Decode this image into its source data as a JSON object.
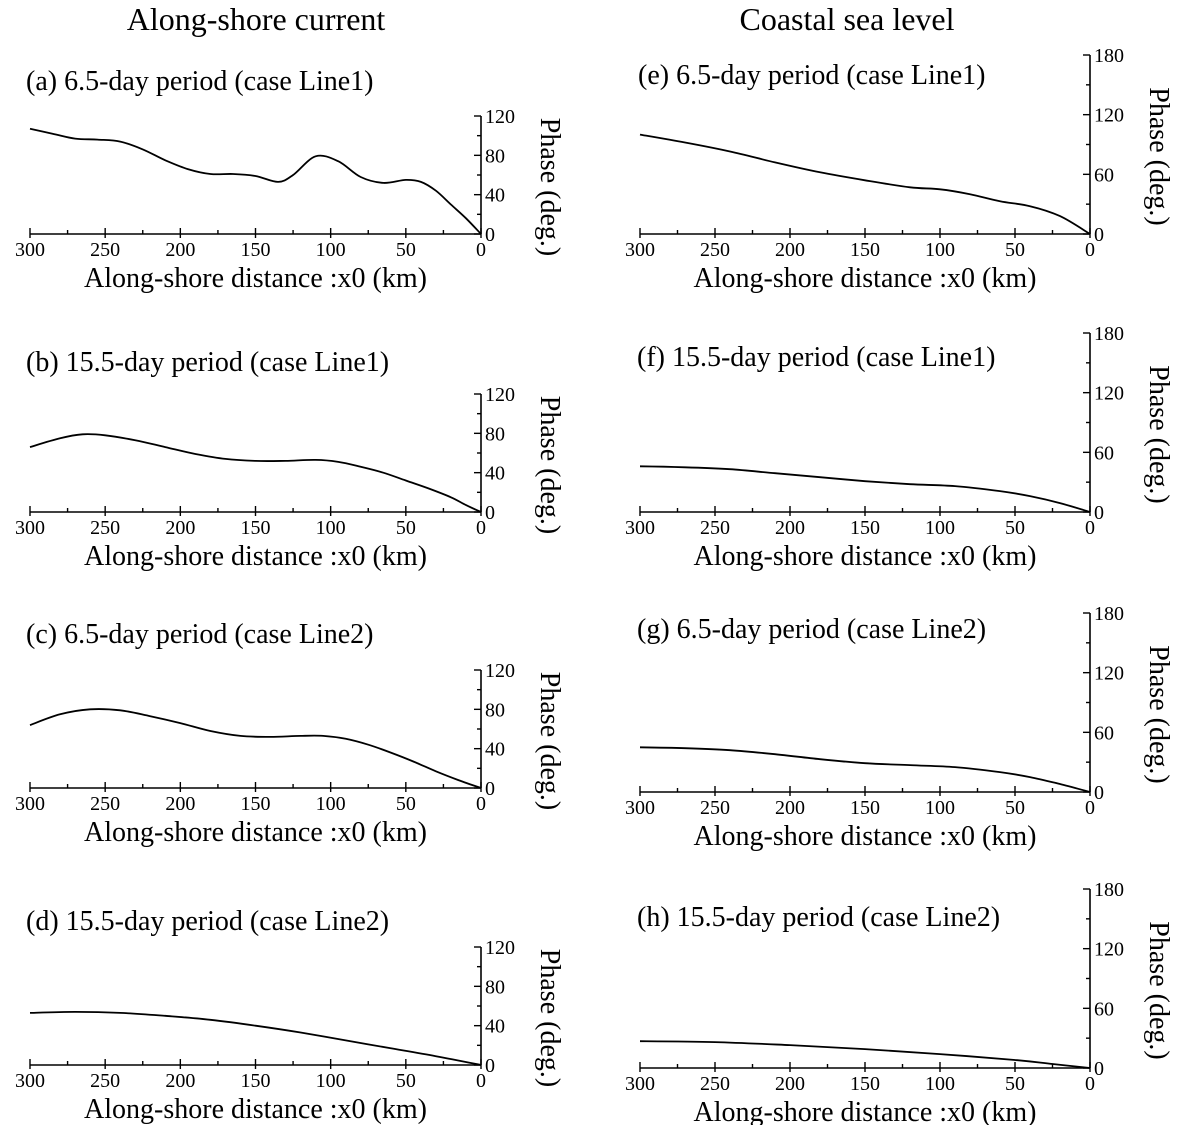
{
  "column_titles": [
    "Along-shore current",
    "Coastal sea level"
  ],
  "chart_data": [
    {
      "type": "line",
      "panel": "a",
      "title": "(a) 6.5-day period  (case Line1)",
      "xlabel": "Along-shore  distance :x0 (km)",
      "ylabel": "Phase (deg.)",
      "xlim": [
        300,
        0
      ],
      "ylim": [
        0,
        120
      ],
      "xticks": [
        "300",
        "250",
        "200",
        "150",
        "100",
        "50",
        "0"
      ],
      "yticks": [
        "0",
        "40",
        "80",
        "120"
      ],
      "x": [
        300,
        285,
        270,
        255,
        240,
        225,
        210,
        195,
        180,
        165,
        150,
        135,
        125,
        110,
        95,
        80,
        65,
        50,
        40,
        30,
        20,
        10,
        0
      ],
      "y": [
        107,
        102,
        97,
        96,
        94,
        86,
        75,
        66,
        61,
        61,
        59,
        53,
        60,
        79,
        74,
        58,
        52,
        55,
        53,
        44,
        30,
        16,
        0
      ]
    },
    {
      "type": "line",
      "panel": "b",
      "title": "(b) 15.5-day period  (case Line1)",
      "xlabel": "Along-shore  distance :x0 (km)",
      "ylabel": "Phase (deg.)",
      "xlim": [
        300,
        0
      ],
      "ylim": [
        0,
        120
      ],
      "xticks": [
        "300",
        "250",
        "200",
        "150",
        "100",
        "50",
        "0"
      ],
      "yticks": [
        "0",
        "40",
        "80",
        "120"
      ],
      "x": [
        300,
        280,
        265,
        250,
        230,
        210,
        190,
        170,
        150,
        130,
        110,
        95,
        80,
        65,
        50,
        35,
        20,
        10,
        0
      ],
      "y": [
        66,
        75,
        79,
        78,
        73,
        66,
        59,
        54,
        52,
        52,
        53,
        51,
        46,
        40,
        32,
        24,
        15,
        7,
        0
      ]
    },
    {
      "type": "line",
      "panel": "c",
      "title": "(c) 6.5-day period  (case Line2)",
      "xlabel": "Along-shore  distance :x0 (km)",
      "ylabel": "Phase (deg.)",
      "xlim": [
        300,
        0
      ],
      "ylim": [
        0,
        120
      ],
      "xticks": [
        "300",
        "250",
        "200",
        "150",
        "100",
        "50",
        "0"
      ],
      "yticks": [
        "0",
        "40",
        "80",
        "120"
      ],
      "x": [
        300,
        280,
        260,
        240,
        220,
        200,
        180,
        160,
        140,
        120,
        105,
        90,
        75,
        60,
        45,
        30,
        15,
        0
      ],
      "y": [
        64,
        75,
        80,
        79,
        73,
        66,
        58,
        53,
        52,
        53,
        53,
        50,
        44,
        36,
        27,
        17,
        8,
        0
      ]
    },
    {
      "type": "line",
      "panel": "d",
      "title": "(d) 15.5-day period  (case Line2)",
      "xlabel": "Along-shore  distance :x0 (km)",
      "ylabel": "Phase (deg.)",
      "xlim": [
        300,
        0
      ],
      "ylim": [
        0,
        120
      ],
      "xticks": [
        "300",
        "250",
        "200",
        "150",
        "100",
        "50",
        "0"
      ],
      "yticks": [
        "0",
        "40",
        "80",
        "120"
      ],
      "x": [
        300,
        270,
        240,
        210,
        180,
        150,
        120,
        90,
        60,
        30,
        0
      ],
      "y": [
        53,
        54,
        53,
        50,
        46,
        40,
        33,
        25,
        17,
        9,
        0
      ]
    },
    {
      "type": "line",
      "panel": "e",
      "title": "(e) 6.5-day period  (case Line1)",
      "xlabel": "Along-shore  distance :x0 (km)",
      "ylabel": "Phase (deg.)",
      "xlim": [
        300,
        0
      ],
      "ylim": [
        0,
        180
      ],
      "xticks": [
        "300",
        "250",
        "200",
        "150",
        "100",
        "50",
        "0"
      ],
      "yticks": [
        "0",
        "60",
        "120",
        "180"
      ],
      "x": [
        300,
        270,
        240,
        210,
        180,
        150,
        120,
        100,
        80,
        60,
        40,
        20,
        0
      ],
      "y": [
        100,
        92,
        83,
        72,
        62,
        54,
        47,
        45,
        40,
        33,
        28,
        18,
        0
      ]
    },
    {
      "type": "line",
      "panel": "f",
      "title": "(f) 15.5-day period  (case Line1)",
      "xlabel": "Along-shore  distance :x0 (km)",
      "ylabel": "Phase (deg.)",
      "xlim": [
        300,
        0
      ],
      "ylim": [
        0,
        180
      ],
      "xticks": [
        "300",
        "250",
        "200",
        "150",
        "100",
        "50",
        "0"
      ],
      "yticks": [
        "0",
        "60",
        "120",
        "180"
      ],
      "x": [
        300,
        270,
        240,
        210,
        180,
        150,
        120,
        90,
        60,
        40,
        20,
        0
      ],
      "y": [
        46,
        45,
        43,
        39,
        35,
        31,
        28,
        26,
        21,
        16,
        9,
        0
      ]
    },
    {
      "type": "line",
      "panel": "g",
      "title": "(g) 6.5-day period  (case Line2)",
      "xlabel": "Along-shore  distance :x0 (km)",
      "ylabel": "Phase (deg.)",
      "xlim": [
        300,
        0
      ],
      "ylim": [
        0,
        180
      ],
      "xticks": [
        "300",
        "250",
        "200",
        "150",
        "100",
        "50",
        "0"
      ],
      "yticks": [
        "0",
        "60",
        "120",
        "180"
      ],
      "x": [
        300,
        270,
        240,
        210,
        180,
        150,
        120,
        90,
        60,
        40,
        20,
        0
      ],
      "y": [
        45,
        44,
        42,
        38,
        33,
        29,
        27,
        25,
        20,
        15,
        8,
        0
      ]
    },
    {
      "type": "line",
      "panel": "h",
      "title": "(h) 15.5-day period  (case Line2)",
      "xlabel": "Along-shore  distance :x0 (km)",
      "ylabel": "Phase (deg.)",
      "xlim": [
        300,
        0
      ],
      "ylim": [
        0,
        180
      ],
      "xticks": [
        "300",
        "250",
        "200",
        "150",
        "100",
        "50",
        "0"
      ],
      "yticks": [
        "0",
        "60",
        "120",
        "180"
      ],
      "x": [
        300,
        250,
        200,
        150,
        100,
        50,
        25,
        0
      ],
      "y": [
        27,
        26,
        23,
        19,
        14,
        8,
        4,
        0
      ]
    }
  ]
}
